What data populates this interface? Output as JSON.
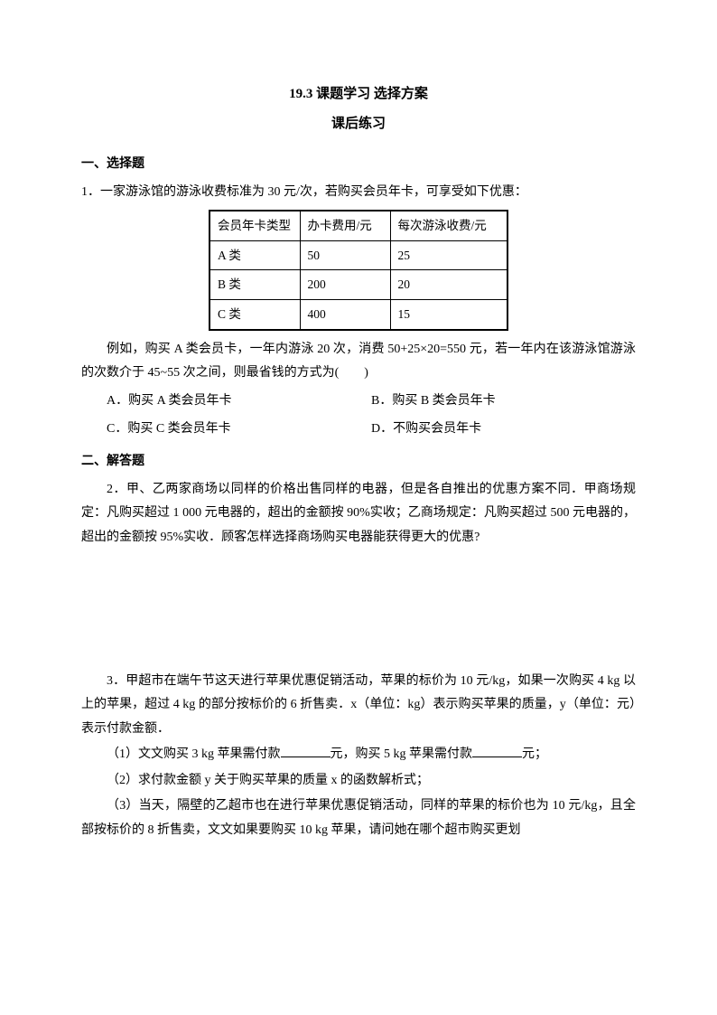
{
  "title": "19.3 课题学习 选择方案",
  "subtitle": "课后练习",
  "section1": {
    "header": "一、选择题",
    "q1": {
      "intro": "1．一家游泳馆的游泳收费标准为 30 元/次，若购买会员年卡，可享受如下优惠：",
      "table": {
        "headers": [
          "会员年卡类型",
          "办卡费用/元",
          "每次游泳收费/元"
        ],
        "rows": [
          [
            "A 类",
            "50",
            "25"
          ],
          [
            "B 类",
            "200",
            "20"
          ],
          [
            "C 类",
            "400",
            "15"
          ]
        ]
      },
      "body1": "例如，购买 A 类会员卡，一年内游泳 20 次，消费 50+25×20=550 元，若一年内在该游泳馆游泳的次数介于 45~55 次之间，则最省钱的方式为(　　)",
      "options": {
        "a": "A．购买 A 类会员年卡",
        "b": "B．购买 B 类会员年卡",
        "c": "C．购买 C 类会员年卡",
        "d": "D．不购买会员年卡"
      }
    }
  },
  "section2": {
    "header": "二、解答题",
    "q2": "2．甲、乙两家商场以同样的价格出售同样的电器，但是各自推出的优惠方案不同．甲商场规定：凡购买超过 1 000 元电器的，超出的金额按 90%实收；乙商场规定：凡购买超过 500 元电器的，超出的金额按 95%实收．顾客怎样选择商场购买电器能获得更大的优惠?",
    "q3": {
      "p1": "3．甲超市在端午节这天进行苹果优惠促销活动，苹果的标价为 10 元/kg，如果一次购买 4 kg 以上的苹果，超过 4 kg 的部分按标价的 6 折售卖．x（单位：kg）表示购买苹果的质量，y（单位：元）表示付款金额．",
      "p2a": "（1）文文购买 3 kg 苹果需付款",
      "p2b": "元，购买 5 kg 苹果需付款",
      "p2c": "元；",
      "p3": "（2）求付款金额 y 关于购买苹果的质量 x 的函数解析式；",
      "p4": "（3）当天，隔壁的乙超市也在进行苹果优惠促销活动，同样的苹果的标价也为 10 元/kg，且全部按标价的 8 折售卖，文文如果要购买 10 kg 苹果，请问她在哪个超市购买更划"
    }
  }
}
